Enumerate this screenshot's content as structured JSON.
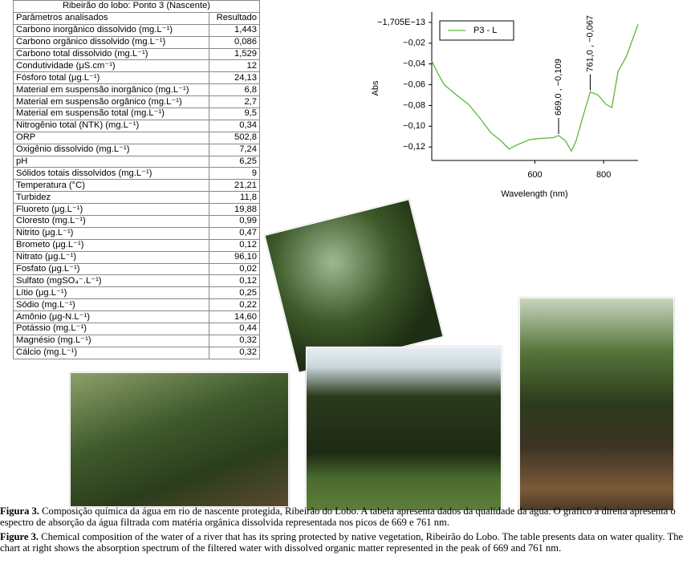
{
  "table": {
    "title": "Ribeirão do lobo: Ponto 3 (Nascente)",
    "header": [
      "Parâmetros analisados",
      "Resultado"
    ],
    "rows": [
      [
        "Carbono inorgânico dissolvido (mg.L⁻¹)",
        "1,443"
      ],
      [
        "Carbono orgânico dissolvido (mg.L⁻¹)",
        "0,086"
      ],
      [
        "Carbono total dissolvido (mg.L⁻¹)",
        "1,529"
      ],
      [
        "Condutividade (μS.cm⁻¹)",
        "12"
      ],
      [
        "Fósforo total (μg.L⁻¹)",
        "24,13"
      ],
      [
        "Material em suspensão inorgânico (mg.L⁻¹)",
        "6,8"
      ],
      [
        "Material em suspensão orgânico (mg.L⁻¹)",
        "2,7"
      ],
      [
        "Material em suspensão total (mg.L⁻¹)",
        "9,5"
      ],
      [
        "Nitrogênio total (NTK) (mg.L⁻¹)",
        "0,34"
      ],
      [
        "ORP",
        "502,8"
      ],
      [
        "Oxigênio dissolvido (mg.L⁻¹)",
        "7,24"
      ],
      [
        "pH",
        "6,25"
      ],
      [
        "Sólidos totais dissolvidos (mg.L⁻¹)",
        "9"
      ],
      [
        "Temperatura (°C)",
        "21,21"
      ],
      [
        "Turbidez",
        "11,8"
      ],
      [
        "Fluoreto (μg.L⁻¹)",
        "19,88"
      ],
      [
        "Cloresto (mg.L⁻¹)",
        "0,99"
      ],
      [
        "Nitrito (μg.L⁻¹)",
        "0,47"
      ],
      [
        "Brometo (μg.L⁻¹)",
        "0,12"
      ],
      [
        "Nitrato (μg.L⁻¹)",
        "96,10"
      ],
      [
        "Fosfato (μg.L⁻¹)",
        "0,02"
      ],
      [
        "Sulfato (mgSO₄⁻.L⁻¹)",
        "0,12"
      ],
      [
        "Lítio (μg.L⁻¹)",
        "0,25"
      ],
      [
        "Sódio (mg.L⁻¹)",
        "0,22"
      ],
      [
        "Amônio (μg-N.L⁻¹)",
        "14,60"
      ],
      [
        "Potássio (mg.L⁻¹)",
        "0,44"
      ],
      [
        "Magnésio (mg.L⁻¹)",
        "0,32"
      ],
      [
        "Cálcio (mg.L⁻¹)",
        "0,32"
      ]
    ]
  },
  "chart_data": {
    "type": "line",
    "xlabel": "Wavelength (nm)",
    "ylabel": "Abs",
    "x": [
      300,
      316,
      336,
      372,
      407,
      442,
      471,
      501,
      525,
      548,
      584,
      607,
      654,
      669,
      689,
      706,
      720,
      736,
      761,
      784,
      807,
      824,
      842,
      866,
      900
    ],
    "series": [
      {
        "name": "P3 - L",
        "color": "#5cb83c",
        "values": [
          -0.037,
          -0.048,
          -0.06,
          -0.07,
          -0.079,
          -0.093,
          -0.106,
          -0.114,
          -0.122,
          -0.118,
          -0.113,
          -0.112,
          -0.111,
          -0.109,
          -0.114,
          -0.124,
          -0.114,
          -0.095,
          -0.067,
          -0.07,
          -0.079,
          -0.082,
          -0.047,
          -0.033,
          -0.002
        ]
      }
    ],
    "xlim": [
      300,
      900
    ],
    "xticks": [
      600,
      800
    ],
    "ylim": [
      -0.133,
      0.01
    ],
    "yticks": [
      {
        "value": -1.705e-13,
        "label": "−1,705E−13"
      },
      {
        "value": -0.02,
        "label": "−0,02"
      },
      {
        "value": -0.04,
        "label": "−0,04"
      },
      {
        "value": -0.06,
        "label": "−0,06"
      },
      {
        "value": -0.08,
        "label": "−0,08"
      },
      {
        "value": -0.1,
        "label": "−0,10"
      },
      {
        "value": -0.12,
        "label": "−0,12"
      }
    ],
    "legend": "upper left",
    "annotations": [
      {
        "label": "669,0 , −0,109",
        "x": 669,
        "y": -0.109
      },
      {
        "label": "761,0 , −0,067",
        "x": 761,
        "y": -0.067
      }
    ]
  },
  "caption_pt": {
    "label": "Figura 3.",
    "text": "Composição química da água em rio de nascente protegida, Ribeirão do Lobo. A tabela apresenta dados da qualidade da água. O gráfico à direita apresenta o espectro de absorção da água filtrada com matéria orgânica dissolvida representada nos picos de 669 e 761 nm."
  },
  "caption_en": {
    "label": "Figure 3.",
    "text": "Chemical composition of the water of a river that has its spring protected by native vegetation, Ribeirão do Lobo. The table presents data on water quality. The chart at right shows the absorption spectrum of the filtered water with dissolved organic matter represented in the peak of 669 and 761 nm."
  }
}
